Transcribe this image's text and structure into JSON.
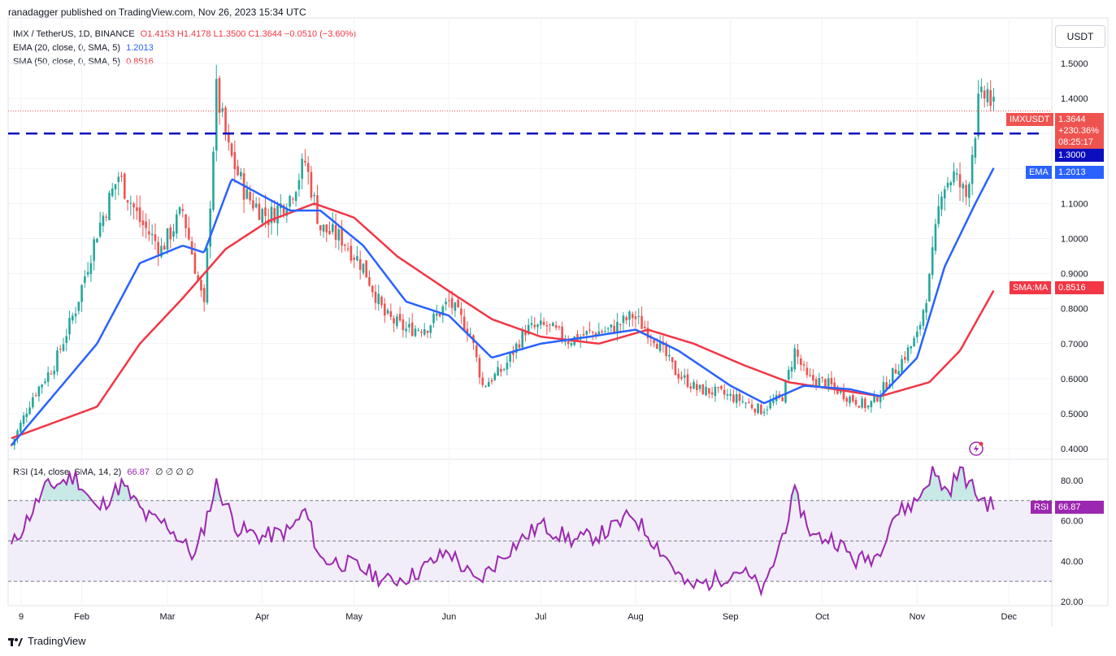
{
  "header": {
    "publisher": "ranadagger published on TradingView.com, Nov 26, 2023 15:34 UTC"
  },
  "legend": {
    "symbol": "IMX / TetherUS, 1D, BINANCE",
    "ohlc": "O1.4153  H1.4178  L1.3500  C1.3644  −0.0510 (−3.60%)",
    "ema_label": "EMA (20, close, 0, SMA, 5)",
    "ema_value": "1.2013",
    "sma_label": "SMA (50, close, 0, SMA, 5)",
    "sma_value": "0.8516",
    "rsi_label": "RSI (14, close, SMA, 14, 2)",
    "rsi_value": "66.87",
    "rsi_extra": "∅ ∅ ∅ ∅"
  },
  "unit_button": "USDT",
  "price_tags": {
    "symbol": "IMXUSDT",
    "price": "1.3644",
    "change": "+230.36%",
    "countdown": "08:25:17",
    "level": "1.3000",
    "ema_tag": "EMA",
    "ema": "1.2013",
    "sma_tag": "SMA:MA",
    "sma": "0.8516",
    "rsi_tag": "RSI",
    "rsi": "66.87"
  },
  "footer": {
    "brand": "TradingView"
  },
  "colors": {
    "up": "#26a69a",
    "down": "#ef5350",
    "ema": "#2962ff",
    "sma": "#f23645",
    "level": "#0c0dbf",
    "rsi": "#9c27b0",
    "rsi_fill": "#ede7f6"
  },
  "chart_data": {
    "type": "candlestick",
    "title": "IMX / TetherUS, 1D, BINANCE",
    "price_axis_ticks": [
      "1.5000",
      "1.4000",
      "1.3000",
      "1.2000",
      "1.1000",
      "1.0000",
      "0.9000",
      "0.8000",
      "0.7000",
      "0.6000",
      "0.5000",
      "0.4000"
    ],
    "price_range": [
      0.37,
      1.63
    ],
    "x_tick_labels": [
      "9",
      "Feb",
      "Mar",
      "Apr",
      "May",
      "Jun",
      "Jul",
      "Aug",
      "Sep",
      "Oct",
      "Nov",
      "Dec"
    ],
    "horizontal_level": 1.3,
    "close_price_line": 1.3644,
    "price_anchors": [
      [
        "2023-01-09",
        0.41
      ],
      [
        "2023-01-16",
        0.55
      ],
      [
        "2023-01-23",
        0.64
      ],
      [
        "2023-01-30",
        0.8
      ],
      [
        "2023-02-06",
        1.02
      ],
      [
        "2023-02-13",
        1.18
      ],
      [
        "2023-02-20",
        1.05
      ],
      [
        "2023-02-27",
        0.97
      ],
      [
        "2023-03-06",
        1.08
      ],
      [
        "2023-03-13",
        0.8
      ],
      [
        "2023-03-17",
        1.42
      ],
      [
        "2023-03-21",
        1.25
      ],
      [
        "2023-03-27",
        1.12
      ],
      [
        "2023-04-03",
        1.06
      ],
      [
        "2023-04-10",
        1.12
      ],
      [
        "2023-04-15",
        1.22
      ],
      [
        "2023-04-20",
        1.03
      ],
      [
        "2023-04-27",
        1.0
      ],
      [
        "2023-05-04",
        0.92
      ],
      [
        "2023-05-11",
        0.78
      ],
      [
        "2023-05-18",
        0.74
      ],
      [
        "2023-05-25",
        0.75
      ],
      [
        "2023-06-01",
        0.82
      ],
      [
        "2023-06-08",
        0.73
      ],
      [
        "2023-06-12",
        0.58
      ],
      [
        "2023-06-19",
        0.63
      ],
      [
        "2023-06-26",
        0.74
      ],
      [
        "2023-07-03",
        0.75
      ],
      [
        "2023-07-10",
        0.71
      ],
      [
        "2023-07-17",
        0.73
      ],
      [
        "2023-07-24",
        0.74
      ],
      [
        "2023-07-31",
        0.78
      ],
      [
        "2023-08-07",
        0.72
      ],
      [
        "2023-08-14",
        0.62
      ],
      [
        "2023-08-21",
        0.57
      ],
      [
        "2023-08-28",
        0.56
      ],
      [
        "2023-09-04",
        0.54
      ],
      [
        "2023-09-11",
        0.51
      ],
      [
        "2023-09-18",
        0.55
      ],
      [
        "2023-09-22",
        0.68
      ],
      [
        "2023-09-26",
        0.6
      ],
      [
        "2023-10-02",
        0.59
      ],
      [
        "2023-10-09",
        0.55
      ],
      [
        "2023-10-16",
        0.52
      ],
      [
        "2023-10-20",
        0.56
      ],
      [
        "2023-10-26",
        0.64
      ],
      [
        "2023-11-01",
        0.72
      ],
      [
        "2023-11-05",
        0.88
      ],
      [
        "2023-11-09",
        1.15
      ],
      [
        "2023-11-13",
        1.18
      ],
      [
        "2023-11-17",
        1.12
      ],
      [
        "2023-11-21",
        1.38
      ],
      [
        "2023-11-24",
        1.42
      ],
      [
        "2023-11-26",
        1.3644
      ]
    ],
    "ema_anchors": [
      [
        "2023-01-09",
        0.41
      ],
      [
        "2023-02-06",
        0.7
      ],
      [
        "2023-02-20",
        0.93
      ],
      [
        "2023-03-06",
        0.98
      ],
      [
        "2023-03-13",
        0.96
      ],
      [
        "2023-03-22",
        1.17
      ],
      [
        "2023-04-10",
        1.08
      ],
      [
        "2023-04-20",
        1.08
      ],
      [
        "2023-05-04",
        0.98
      ],
      [
        "2023-05-18",
        0.82
      ],
      [
        "2023-06-01",
        0.78
      ],
      [
        "2023-06-15",
        0.66
      ],
      [
        "2023-07-01",
        0.7
      ],
      [
        "2023-07-17",
        0.72
      ],
      [
        "2023-08-01",
        0.74
      ],
      [
        "2023-08-15",
        0.68
      ],
      [
        "2023-09-01",
        0.58
      ],
      [
        "2023-09-12",
        0.53
      ],
      [
        "2023-09-25",
        0.58
      ],
      [
        "2023-10-10",
        0.57
      ],
      [
        "2023-10-20",
        0.55
      ],
      [
        "2023-11-01",
        0.66
      ],
      [
        "2023-11-10",
        0.92
      ],
      [
        "2023-11-20",
        1.1
      ],
      [
        "2023-11-26",
        1.2013
      ]
    ],
    "sma_anchors": [
      [
        "2023-01-09",
        0.43
      ],
      [
        "2023-02-06",
        0.52
      ],
      [
        "2023-02-20",
        0.7
      ],
      [
        "2023-03-06",
        0.83
      ],
      [
        "2023-03-20",
        0.97
      ],
      [
        "2023-04-03",
        1.05
      ],
      [
        "2023-04-18",
        1.1
      ],
      [
        "2023-05-01",
        1.06
      ],
      [
        "2023-05-15",
        0.95
      ],
      [
        "2023-06-01",
        0.85
      ],
      [
        "2023-06-15",
        0.77
      ],
      [
        "2023-07-01",
        0.72
      ],
      [
        "2023-07-20",
        0.7
      ],
      [
        "2023-08-05",
        0.74
      ],
      [
        "2023-08-20",
        0.7
      ],
      [
        "2023-09-05",
        0.64
      ],
      [
        "2023-09-20",
        0.59
      ],
      [
        "2023-10-05",
        0.57
      ],
      [
        "2023-10-20",
        0.55
      ],
      [
        "2023-11-05",
        0.59
      ],
      [
        "2023-11-15",
        0.68
      ],
      [
        "2023-11-26",
        0.8516
      ]
    ],
    "rsi": {
      "axis_ticks": [
        "80.00",
        "60.00",
        "40.00",
        "20.00"
      ],
      "range": [
        18,
        90
      ],
      "bands": [
        30,
        50,
        70
      ],
      "anchors": [
        [
          "2023-01-09",
          47
        ],
        [
          "2023-01-20",
          76
        ],
        [
          "2023-01-30",
          82
        ],
        [
          "2023-02-06",
          65
        ],
        [
          "2023-02-14",
          78
        ],
        [
          "2023-02-22",
          62
        ],
        [
          "2023-03-01",
          58
        ],
        [
          "2023-03-10",
          42
        ],
        [
          "2023-03-17",
          78
        ],
        [
          "2023-03-24",
          56
        ],
        [
          "2023-04-01",
          52
        ],
        [
          "2023-04-10",
          55
        ],
        [
          "2023-04-15",
          65
        ],
        [
          "2023-04-20",
          41
        ],
        [
          "2023-05-01",
          38
        ],
        [
          "2023-05-12",
          30
        ],
        [
          "2023-05-20",
          33
        ],
        [
          "2023-06-01",
          45
        ],
        [
          "2023-06-10",
          29
        ],
        [
          "2023-06-20",
          45
        ],
        [
          "2023-07-01",
          58
        ],
        [
          "2023-07-12",
          50
        ],
        [
          "2023-07-22",
          54
        ],
        [
          "2023-07-31",
          63
        ],
        [
          "2023-08-10",
          44
        ],
        [
          "2023-08-18",
          27
        ],
        [
          "2023-08-26",
          30
        ],
        [
          "2023-09-04",
          36
        ],
        [
          "2023-09-12",
          25
        ],
        [
          "2023-09-17",
          48
        ],
        [
          "2023-09-22",
          73
        ],
        [
          "2023-09-28",
          52
        ],
        [
          "2023-10-05",
          51
        ],
        [
          "2023-10-12",
          40
        ],
        [
          "2023-10-19",
          43
        ],
        [
          "2023-10-24",
          62
        ],
        [
          "2023-11-01",
          70
        ],
        [
          "2023-11-06",
          84
        ],
        [
          "2023-11-11",
          74
        ],
        [
          "2023-11-15",
          85
        ],
        [
          "2023-11-21",
          72
        ],
        [
          "2023-11-26",
          66.87
        ]
      ]
    }
  }
}
